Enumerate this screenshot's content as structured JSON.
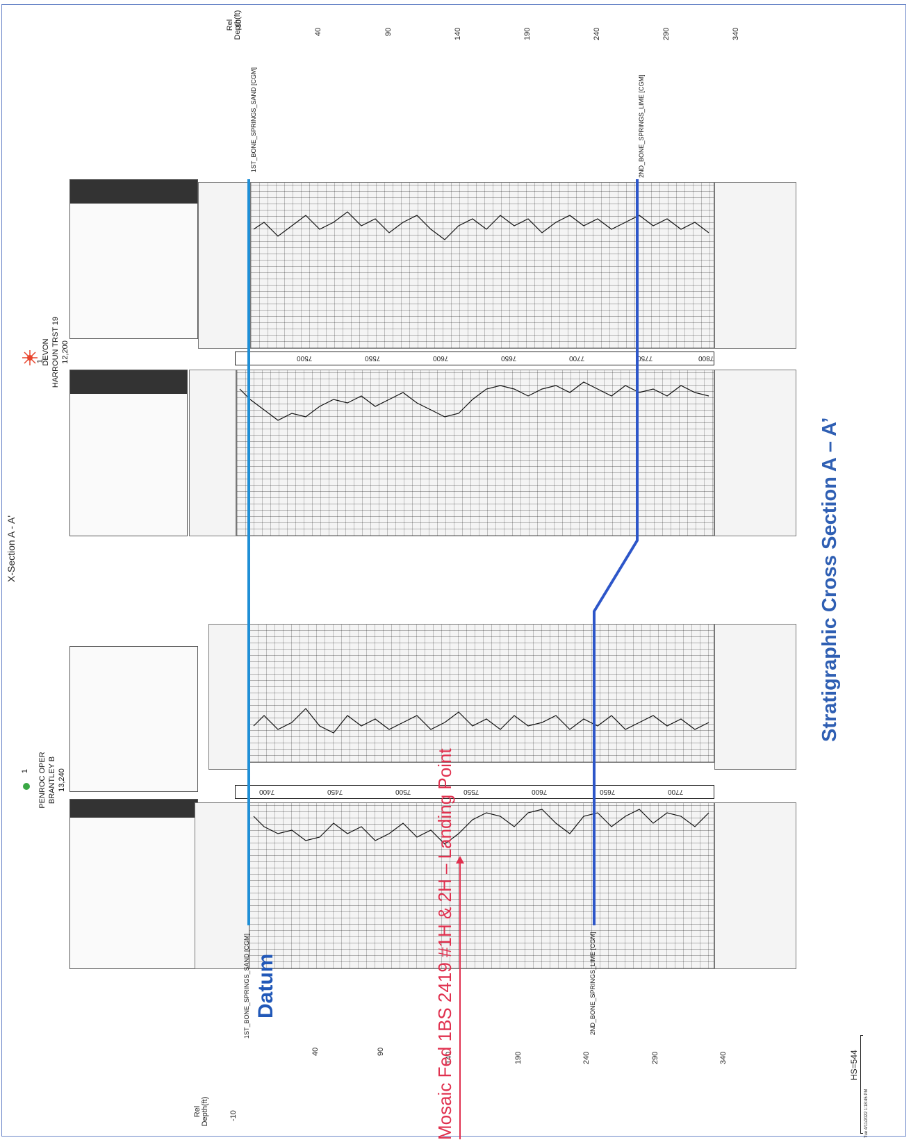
{
  "title": "X-Section A - A'",
  "wells": [
    {
      "symbol_label": "1",
      "operator": "PENROC OPER",
      "name": "BRANTLEY B",
      "td": "13,240",
      "color": "#3aa845"
    },
    {
      "symbol_label": "1",
      "operator": "DEVON",
      "name": "HARROUN TRST 19",
      "td": "12,200",
      "color": "#e8442c"
    }
  ],
  "depth_axis": {
    "label": "Rel\nDepth(ft)",
    "ticks": [
      "-10",
      "40",
      "90",
      "140",
      "190",
      "240",
      "290",
      "340"
    ]
  },
  "tops": [
    {
      "name": "1ST_BONE_SPRINGS_SAND [CGM]",
      "color": "#1f8fd6"
    },
    {
      "name": "2ND_BONE_SPRINGS_LIME [CGM]",
      "color": "#2d56c9"
    }
  ],
  "well1_ruler": [
    "7400",
    "7450",
    "7500",
    "7550",
    "7600",
    "7650",
    "7700"
  ],
  "well2_ruler": [
    "7500",
    "7550",
    "7600",
    "7650",
    "7700",
    "7750",
    "7800"
  ],
  "annotations": {
    "datum": "Datum",
    "landing": "Mosaic Fed 1BS 2419 #1H & 2H – Landing Point",
    "caption": "Stratigraphic Cross Section A – A’",
    "datum_color": "#2158b8",
    "landing_color": "#e0304e",
    "caption_color": "#2f5fb3"
  },
  "scale": {
    "hs": "HS=544",
    "stamp": "Tue 4/11/2022 1:18:45 PM"
  }
}
